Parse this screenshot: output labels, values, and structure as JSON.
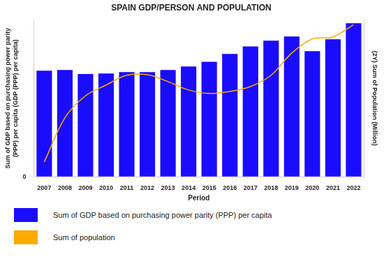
{
  "chart_data": {
    "type": "bar",
    "title": "SPAIN GDP/PERSON AND POPULATION",
    "x_label": "Period",
    "y_label": "Sum of GDP based on purchasing power parity (PPP) per capita (GDP (PPP) per capita)",
    "y2_label": "(2Y) Sum of Population (Million)",
    "categories": [
      "2007",
      "2008",
      "2009",
      "2010",
      "2011",
      "2012",
      "2013",
      "2014",
      "2015",
      "2016",
      "2017",
      "2018",
      "2019",
      "2020",
      "2021",
      "2022"
    ],
    "series": [
      {
        "name": "Sum of GDP based on purchasing power parity (PPP) per capita",
        "color": "#1a0dff",
        "values": [
          31100,
          31300,
          30100,
          30300,
          30700,
          30700,
          31300,
          32300,
          33700,
          36000,
          38200,
          39900,
          41100,
          36800,
          40300,
          45000
        ]
      },
      {
        "name": "Sum of population",
        "type": "line",
        "axis": "y2",
        "color": "#ffaa00",
        "values": [
          44.8,
          45.7,
          46.15,
          46.37,
          46.57,
          46.58,
          46.44,
          46.27,
          46.2,
          46.24,
          46.34,
          46.57,
          47.02,
          47.31,
          47.35,
          47.6
        ]
      }
    ],
    "ylim": [
      0,
      46000
    ],
    "yticks": [
      0
    ],
    "y2lim": [
      44.5,
      47.7
    ],
    "y2ticks": [],
    "grid": true,
    "legend": "bottom left"
  }
}
